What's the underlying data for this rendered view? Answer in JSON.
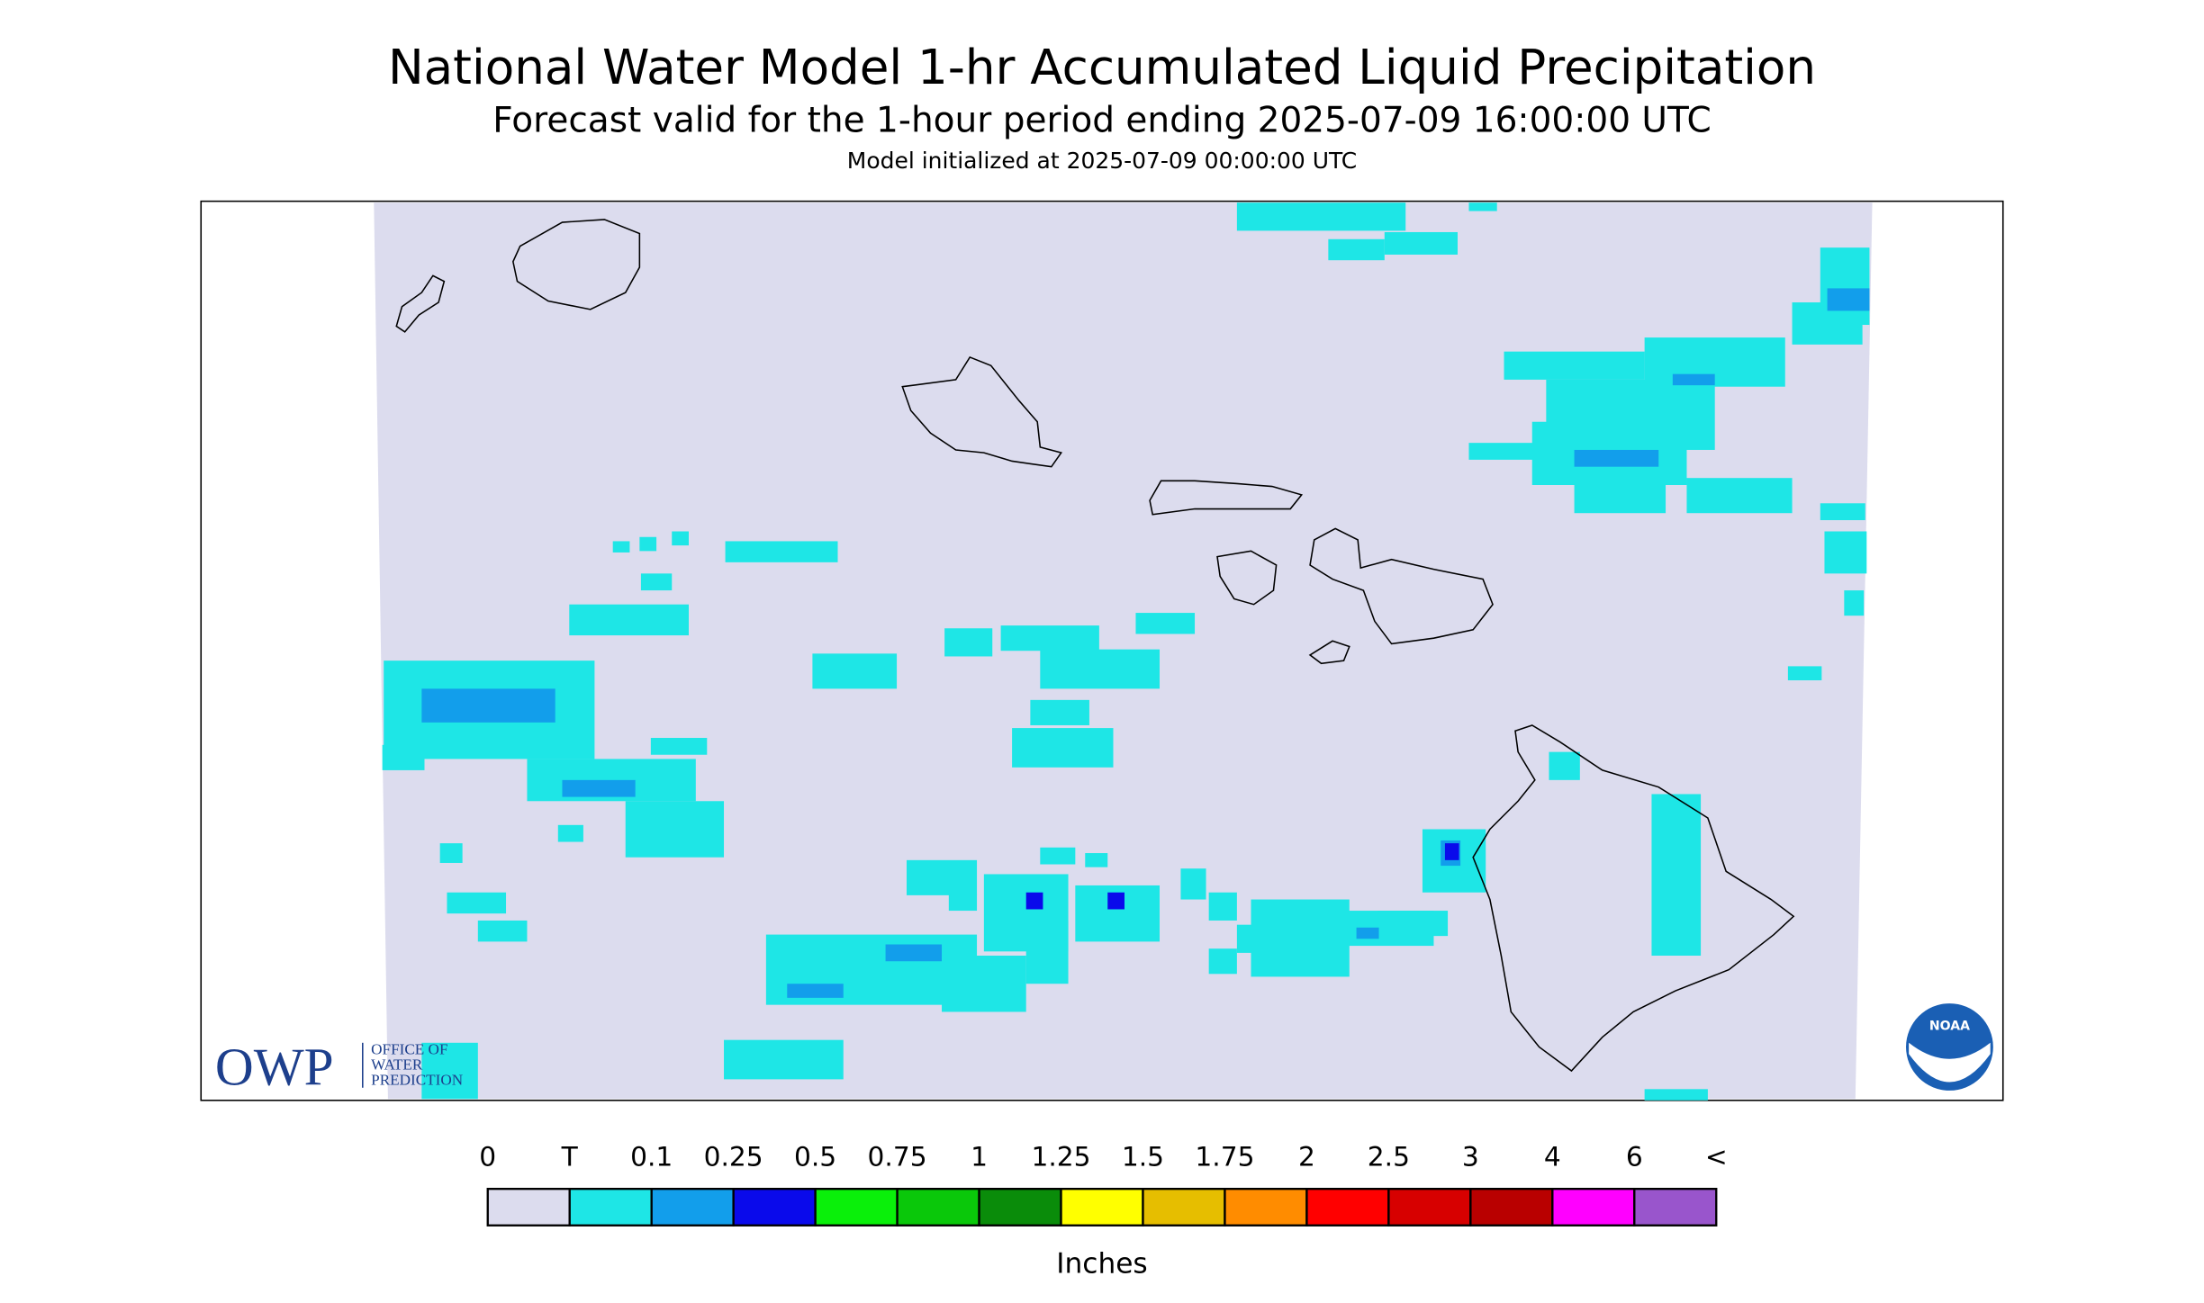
{
  "header": {
    "title": "National Water Model 1-hr Accumulated Liquid Precipitation",
    "subtitle": "Forecast valid for the 1-hour period ending 2025-07-09 16:00:00 UTC",
    "initialized": "Model initialized at 2025-07-09 00:00:00 UTC"
  },
  "logos": {
    "owp": "OWP",
    "owp_lines": [
      "OFFICE OF",
      "WATER",
      "PREDICTION"
    ],
    "noaa": "NOAA"
  },
  "legend": {
    "labels": [
      "0",
      "T",
      "0.1",
      "0.25",
      "0.5",
      "0.75",
      "1",
      "1.25",
      "1.5",
      "1.75",
      "2",
      "2.5",
      "3",
      "4",
      "6",
      "<"
    ],
    "colors": [
      "#dcdcee",
      "#1ee6e6",
      "#129eeb",
      "#0a0aeb",
      "#0af00a",
      "#0ac80a",
      "#0a8c0a",
      "#ffff00",
      "#e6be00",
      "#ff8c00",
      "#ff0000",
      "#d70000",
      "#b90000",
      "#ff00ff",
      "#9955cc"
    ],
    "unit": "Inches"
  }
}
